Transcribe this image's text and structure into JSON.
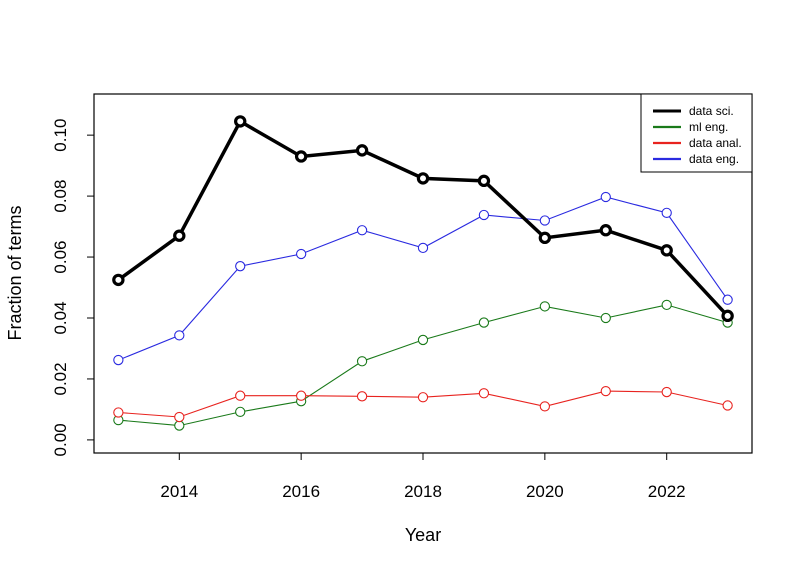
{
  "chart_data": {
    "type": "line",
    "xlabel": "Year",
    "ylabel": "Fraction of terms",
    "xlim": [
      2012.6,
      2023.4
    ],
    "ylim": [
      -0.0043,
      0.1135
    ],
    "x_ticks": [
      2014,
      2016,
      2018,
      2020,
      2022
    ],
    "x_tick_labels": [
      "2014",
      "2016",
      "2018",
      "2020",
      "2022"
    ],
    "y_ticks": [
      0.0,
      0.02,
      0.04,
      0.06,
      0.08,
      0.1
    ],
    "y_tick_labels": [
      "0.00",
      "0.02",
      "0.04",
      "0.06",
      "0.08",
      "0.10"
    ],
    "grid": false,
    "legend_position": "top-right",
    "x": [
      2013,
      2014,
      2015,
      2016,
      2017,
      2018,
      2019,
      2020,
      2021,
      2022,
      2023
    ],
    "series": [
      {
        "name": "data sci.",
        "color": "#000000",
        "style": "bold",
        "values": [
          0.0525,
          0.067,
          0.1045,
          0.093,
          0.095,
          0.0858,
          0.085,
          0.0663,
          0.0688,
          0.0622,
          0.0407
        ]
      },
      {
        "name": "ml eng.",
        "color": "#1a7a1a",
        "style": "normal",
        "values": [
          0.0065,
          0.0047,
          0.0092,
          0.0127,
          0.0258,
          0.0328,
          0.0385,
          0.0438,
          0.04,
          0.0443,
          0.0385
        ]
      },
      {
        "name": "data anal.",
        "color": "#e8231f",
        "style": "normal",
        "values": [
          0.009,
          0.0075,
          0.0145,
          0.0145,
          0.0143,
          0.014,
          0.0153,
          0.011,
          0.016,
          0.0157,
          0.0113
        ]
      },
      {
        "name": "data eng.",
        "color": "#2a2ae0",
        "style": "normal",
        "values": [
          0.0262,
          0.0343,
          0.057,
          0.061,
          0.0688,
          0.063,
          0.0738,
          0.072,
          0.0797,
          0.0745,
          0.046
        ]
      }
    ]
  }
}
